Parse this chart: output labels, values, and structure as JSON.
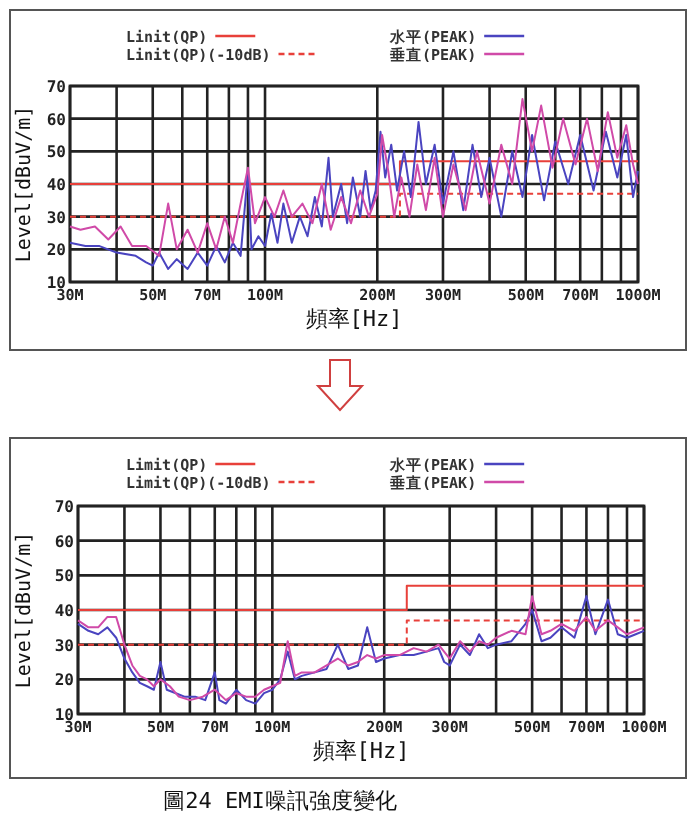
{
  "chart_data": [
    {
      "type": "line",
      "xlabel": "頻率[Hz]",
      "ylabel": "Level[dBuV/m]",
      "log": "x",
      "grid": true,
      "legend": "top",
      "xlim": [
        30,
        1000
      ],
      "ylim": [
        10,
        70
      ],
      "yticks": [
        10,
        20,
        30,
        40,
        50,
        60,
        70
      ],
      "xticks": [
        {
          "value": 30,
          "label": "30M"
        },
        {
          "value": 40,
          "label": null
        },
        {
          "value": 50,
          "label": "50M"
        },
        {
          "value": 60,
          "label": null
        },
        {
          "value": 70,
          "label": "70M"
        },
        {
          "value": 80,
          "label": null
        },
        {
          "value": 90,
          "label": null
        },
        {
          "value": 100,
          "label": "100M"
        },
        {
          "value": 200,
          "label": "200M"
        },
        {
          "value": 300,
          "label": "300M"
        },
        {
          "value": 400,
          "label": null
        },
        {
          "value": 500,
          "label": "500M"
        },
        {
          "value": 600,
          "label": null
        },
        {
          "value": 700,
          "label": "700M"
        },
        {
          "value": 800,
          "label": null
        },
        {
          "value": 900,
          "label": null
        },
        {
          "value": 1000,
          "label": "1000M"
        }
      ],
      "series": [
        {
          "name": "Linit(QP)",
          "color": "#e8403a",
          "line_style": "solid",
          "x": [
            30,
            230,
            230,
            1000
          ],
          "values": [
            40,
            40,
            47,
            47
          ]
        },
        {
          "name": "Linit(QP)(-10dB)",
          "color": "#e8403a",
          "line_style": "dashed",
          "x": [
            30,
            230,
            230,
            1000
          ],
          "values": [
            30,
            30,
            37,
            37
          ]
        },
        {
          "name": "水平(PEAK)",
          "color": "#4a44c0",
          "line_style": "solid",
          "x": [
            30,
            33,
            36,
            40,
            45,
            48,
            50,
            52,
            55,
            58,
            62,
            66,
            70,
            74,
            78,
            82,
            86,
            90,
            92,
            96,
            100,
            104,
            108,
            112,
            118,
            124,
            130,
            136,
            142,
            148,
            152,
            160,
            166,
            172,
            180,
            186,
            192,
            198,
            204,
            210,
            218,
            226,
            236,
            246,
            258,
            270,
            285,
            300,
            320,
            340,
            360,
            380,
            400,
            430,
            460,
            490,
            520,
            560,
            600,
            650,
            700,
            760,
            820,
            880,
            930,
            970,
            1000
          ],
          "values": [
            22,
            21,
            21,
            19,
            18,
            16,
            15,
            19,
            14,
            17,
            14,
            19,
            15,
            21,
            16,
            22,
            18,
            44,
            20,
            24,
            21,
            31,
            22,
            34,
            22,
            30,
            24,
            36,
            27,
            48,
            30,
            40,
            28,
            42,
            30,
            44,
            32,
            38,
            56,
            42,
            52,
            38,
            50,
            36,
            59,
            40,
            52,
            34,
            50,
            32,
            52,
            36,
            48,
            30,
            50,
            36,
            55,
            35,
            53,
            40,
            55,
            38,
            56,
            42,
            55,
            36,
            44
          ]
        },
        {
          "name": "垂直(PEAK)",
          "color": "#d04aa8",
          "line_style": "solid",
          "x": [
            30,
            32,
            35,
            38,
            41,
            44,
            48,
            52,
            55,
            58,
            62,
            66,
            70,
            74,
            78,
            82,
            86,
            90,
            94,
            100,
            106,
            112,
            118,
            126,
            134,
            142,
            150,
            160,
            170,
            180,
            190,
            200,
            206,
            214,
            222,
            232,
            244,
            256,
            270,
            285,
            300,
            320,
            345,
            370,
            400,
            430,
            460,
            490,
            520,
            550,
            590,
            630,
            680,
            730,
            780,
            830,
            880,
            930,
            970,
            1000
          ],
          "values": [
            27,
            26,
            27,
            23,
            27,
            21,
            21,
            18,
            34,
            20,
            26,
            19,
            28,
            20,
            30,
            22,
            34,
            45,
            28,
            36,
            30,
            38,
            30,
            34,
            28,
            40,
            26,
            36,
            28,
            38,
            30,
            37,
            55,
            44,
            30,
            42,
            30,
            46,
            32,
            48,
            30,
            46,
            32,
            50,
            34,
            52,
            40,
            66,
            50,
            64,
            45,
            60,
            46,
            60,
            44,
            62,
            48,
            58,
            46,
            40
          ]
        }
      ]
    },
    {
      "type": "line",
      "xlabel": "頻率[Hz]",
      "ylabel": "Level[dBuV/m]",
      "log": "x",
      "grid": true,
      "legend": "top",
      "xlim": [
        30,
        1000
      ],
      "ylim": [
        10,
        70
      ],
      "yticks": [
        10,
        20,
        30,
        40,
        50,
        60,
        70
      ],
      "xticks": [
        {
          "value": 30,
          "label": "30M"
        },
        {
          "value": 40,
          "label": null
        },
        {
          "value": 50,
          "label": "50M"
        },
        {
          "value": 60,
          "label": null
        },
        {
          "value": 70,
          "label": "70M"
        },
        {
          "value": 80,
          "label": null
        },
        {
          "value": 90,
          "label": null
        },
        {
          "value": 100,
          "label": "100M"
        },
        {
          "value": 200,
          "label": "200M"
        },
        {
          "value": 300,
          "label": "300M"
        },
        {
          "value": 400,
          "label": null
        },
        {
          "value": 500,
          "label": "500M"
        },
        {
          "value": 600,
          "label": null
        },
        {
          "value": 700,
          "label": "700M"
        },
        {
          "value": 800,
          "label": null
        },
        {
          "value": 900,
          "label": null
        },
        {
          "value": 1000,
          "label": "1000M"
        }
      ],
      "annotations": [
        "圖24 EMI噪訊強度變化"
      ],
      "series": [
        {
          "name": "Limit(QP)",
          "color": "#e8403a",
          "line_style": "solid",
          "x": [
            30,
            230,
            230,
            1000
          ],
          "values": [
            40,
            40,
            47,
            47
          ]
        },
        {
          "name": "Limit(QP)(-10dB)",
          "color": "#e8403a",
          "line_style": "dashed",
          "x": [
            30,
            230,
            230,
            1000
          ],
          "values": [
            30,
            30,
            37,
            37
          ]
        },
        {
          "name": "水平(PEAK)",
          "color": "#4a44c0",
          "line_style": "solid",
          "x": [
            30,
            32,
            34,
            36,
            38,
            40,
            42,
            44,
            46,
            48,
            50,
            52,
            55,
            58,
            62,
            66,
            70,
            72,
            75,
            80,
            85,
            90,
            95,
            100,
            105,
            110,
            115,
            120,
            130,
            140,
            150,
            160,
            170,
            180,
            190,
            200,
            220,
            240,
            260,
            280,
            290,
            300,
            320,
            340,
            360,
            380,
            400,
            440,
            480,
            500,
            530,
            560,
            600,
            650,
            700,
            740,
            800,
            850,
            900,
            950,
            1000
          ],
          "values": [
            36,
            34,
            33,
            35,
            32,
            26,
            22,
            19,
            18,
            17,
            25,
            17,
            16,
            15,
            15,
            14,
            22,
            14,
            13,
            17,
            14,
            13,
            16,
            17,
            20,
            28,
            20,
            21,
            22,
            23,
            30,
            23,
            24,
            35,
            25,
            26,
            27,
            27,
            28,
            29,
            25,
            24,
            30,
            27,
            33,
            29,
            30,
            31,
            36,
            40,
            31,
            32,
            35,
            32,
            44,
            33,
            43,
            33,
            32,
            33,
            34
          ]
        },
        {
          "name": "垂直(PEAK)",
          "color": "#d04aa8",
          "line_style": "solid",
          "x": [
            30,
            32,
            34,
            36,
            38,
            40,
            42,
            44,
            46,
            48,
            50,
            53,
            56,
            60,
            65,
            70,
            75,
            80,
            85,
            90,
            95,
            100,
            105,
            110,
            115,
            120,
            130,
            140,
            150,
            160,
            170,
            180,
            190,
            200,
            220,
            240,
            260,
            280,
            300,
            320,
            340,
            360,
            380,
            400,
            440,
            480,
            500,
            530,
            560,
            600,
            650,
            700,
            740,
            800,
            850,
            900,
            950,
            1000
          ],
          "values": [
            37,
            35,
            35,
            38,
            38,
            30,
            24,
            21,
            20,
            18,
            20,
            18,
            15,
            14,
            15,
            17,
            14,
            16,
            15,
            15,
            17,
            18,
            19,
            31,
            21,
            22,
            22,
            24,
            26,
            24,
            25,
            27,
            26,
            27,
            27,
            29,
            28,
            30,
            26,
            31,
            28,
            31,
            30,
            32,
            34,
            33,
            44,
            33,
            34,
            36,
            34,
            38,
            34,
            37,
            35,
            33,
            34,
            35
          ]
        }
      ]
    }
  ]
}
